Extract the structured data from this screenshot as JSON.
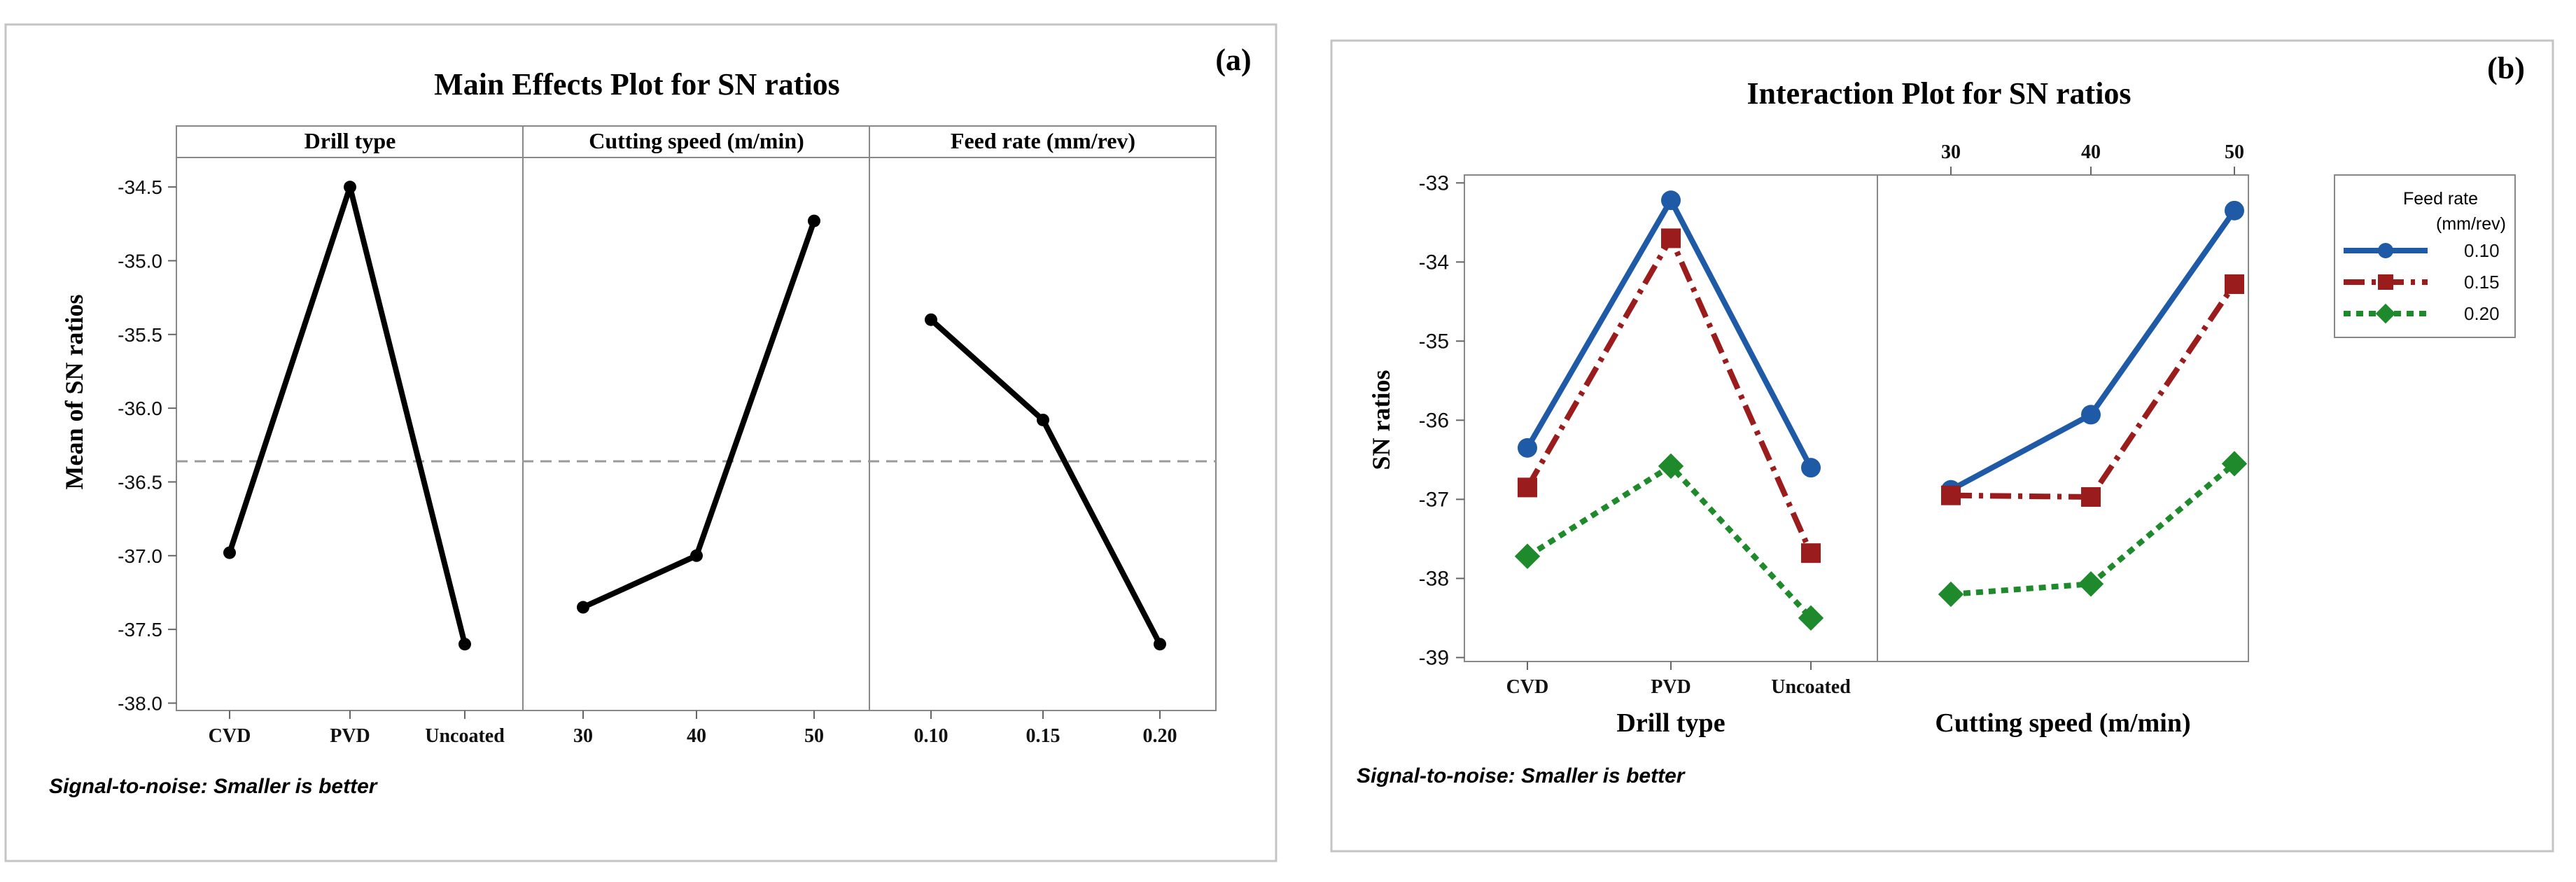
{
  "chart_data": [
    {
      "type": "line",
      "panel_label": "(a)",
      "title": "Main Effects Plot for SN ratios",
      "ylabel": "Mean of SN ratios",
      "ylim": [
        -38.05,
        -34.3
      ],
      "yticks": [
        "-34.5",
        "-35.0",
        "-35.5",
        "-36.0",
        "-36.5",
        "-37.0",
        "-37.5",
        "-38.0"
      ],
      "mean_line": -36.36,
      "footnote": "Signal-to-noise: Smaller is better",
      "factors": [
        {
          "name": "Drill type",
          "levels": [
            "CVD",
            "PVD",
            "Uncoated"
          ],
          "values": [
            -36.98,
            -34.5,
            -37.6
          ]
        },
        {
          "name": "Cutting speed (m/min)",
          "levels": [
            "30",
            "40",
            "50"
          ],
          "values": [
            -37.35,
            -37.0,
            -34.73
          ]
        },
        {
          "name": "Feed rate (mm/rev)",
          "levels": [
            "0.10",
            "0.15",
            "0.20"
          ],
          "values": [
            -35.4,
            -36.08,
            -37.6
          ]
        }
      ]
    },
    {
      "type": "line",
      "panel_label": "(b)",
      "title": "Interaction Plot for SN ratios",
      "ylabel": "SN ratios",
      "ylim": [
        -39.05,
        -32.9
      ],
      "yticks": [
        "-33",
        "-34",
        "-35",
        "-36",
        "-37",
        "-38",
        "-39"
      ],
      "footnote": "Signal-to-noise: Smaller is better",
      "legend": {
        "title_line1": "Feed rate",
        "title_line2": "(mm/rev)"
      },
      "panels": [
        {
          "xlabel": "Drill type",
          "levels": [
            "CVD",
            "PVD",
            "Uncoated"
          ],
          "tick_position": "bottom"
        },
        {
          "xlabel": "Cutting speed (m/min)",
          "levels": [
            "30",
            "40",
            "50"
          ],
          "tick_position": "top"
        }
      ],
      "series": [
        {
          "name": "0.10",
          "color": "#1f5aa6",
          "marker": "circle",
          "dash": "solid",
          "drill_type": [
            -36.35,
            -33.22,
            -36.6
          ],
          "cutting_speed": [
            -36.88,
            -35.93,
            -33.35
          ]
        },
        {
          "name": "0.15",
          "color": "#9b1c1c",
          "marker": "square",
          "dash": "dashdot",
          "drill_type": [
            -36.85,
            -33.7,
            -37.68
          ],
          "cutting_speed": [
            -36.95,
            -36.97,
            -34.28
          ]
        },
        {
          "name": "0.20",
          "color": "#1e8a2c",
          "marker": "diamond",
          "dash": "dotted",
          "drill_type": [
            -37.72,
            -36.58,
            -38.5
          ],
          "cutting_speed": [
            -38.2,
            -38.07,
            -36.55
          ]
        }
      ]
    }
  ]
}
